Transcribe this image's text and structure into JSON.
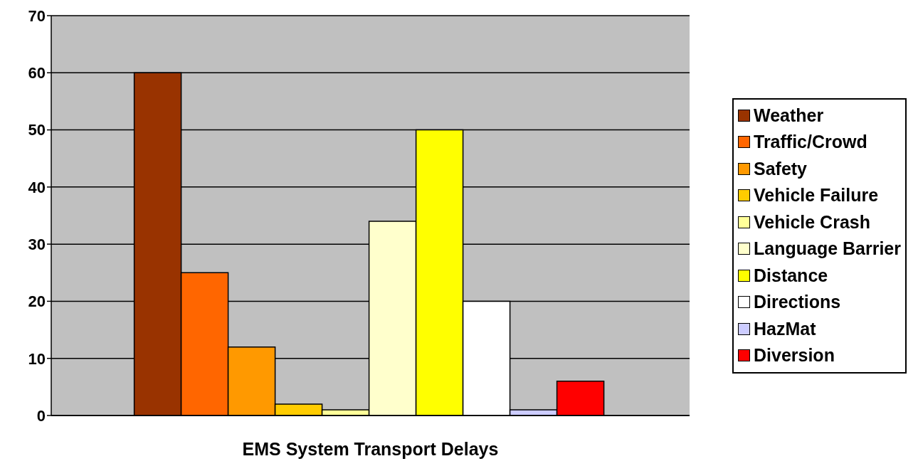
{
  "chart_data": {
    "type": "bar",
    "xlabel": "EMS System Transport Delays",
    "categories": [
      null
    ],
    "series": [
      {
        "name": "Weather",
        "color": "#993300",
        "values": [
          60
        ]
      },
      {
        "name": "Traffic/Crowd",
        "color": "#ff6600",
        "values": [
          25
        ]
      },
      {
        "name": "Safety",
        "color": "#ff9900",
        "values": [
          12
        ]
      },
      {
        "name": "Vehicle Failure",
        "color": "#ffcc00",
        "values": [
          2
        ]
      },
      {
        "name": "Vehicle Crash",
        "color": "#ffff99",
        "values": [
          1
        ]
      },
      {
        "name": "Language Barrier",
        "color": "#ffffcc",
        "values": [
          34
        ]
      },
      {
        "name": "Distance",
        "color": "#ffff00",
        "values": [
          50
        ]
      },
      {
        "name": "Directions",
        "color": "#ffffff",
        "values": [
          20
        ]
      },
      {
        "name": "HazMat",
        "color": "#ccccff",
        "values": [
          1
        ]
      },
      {
        "name": "Diversion",
        "color": "#ff0000",
        "values": [
          6
        ]
      }
    ],
    "ylim": [
      0,
      70
    ],
    "yticks": [
      0,
      10,
      20,
      30,
      40,
      50,
      60,
      70
    ],
    "grid": "y",
    "legend": "right"
  }
}
